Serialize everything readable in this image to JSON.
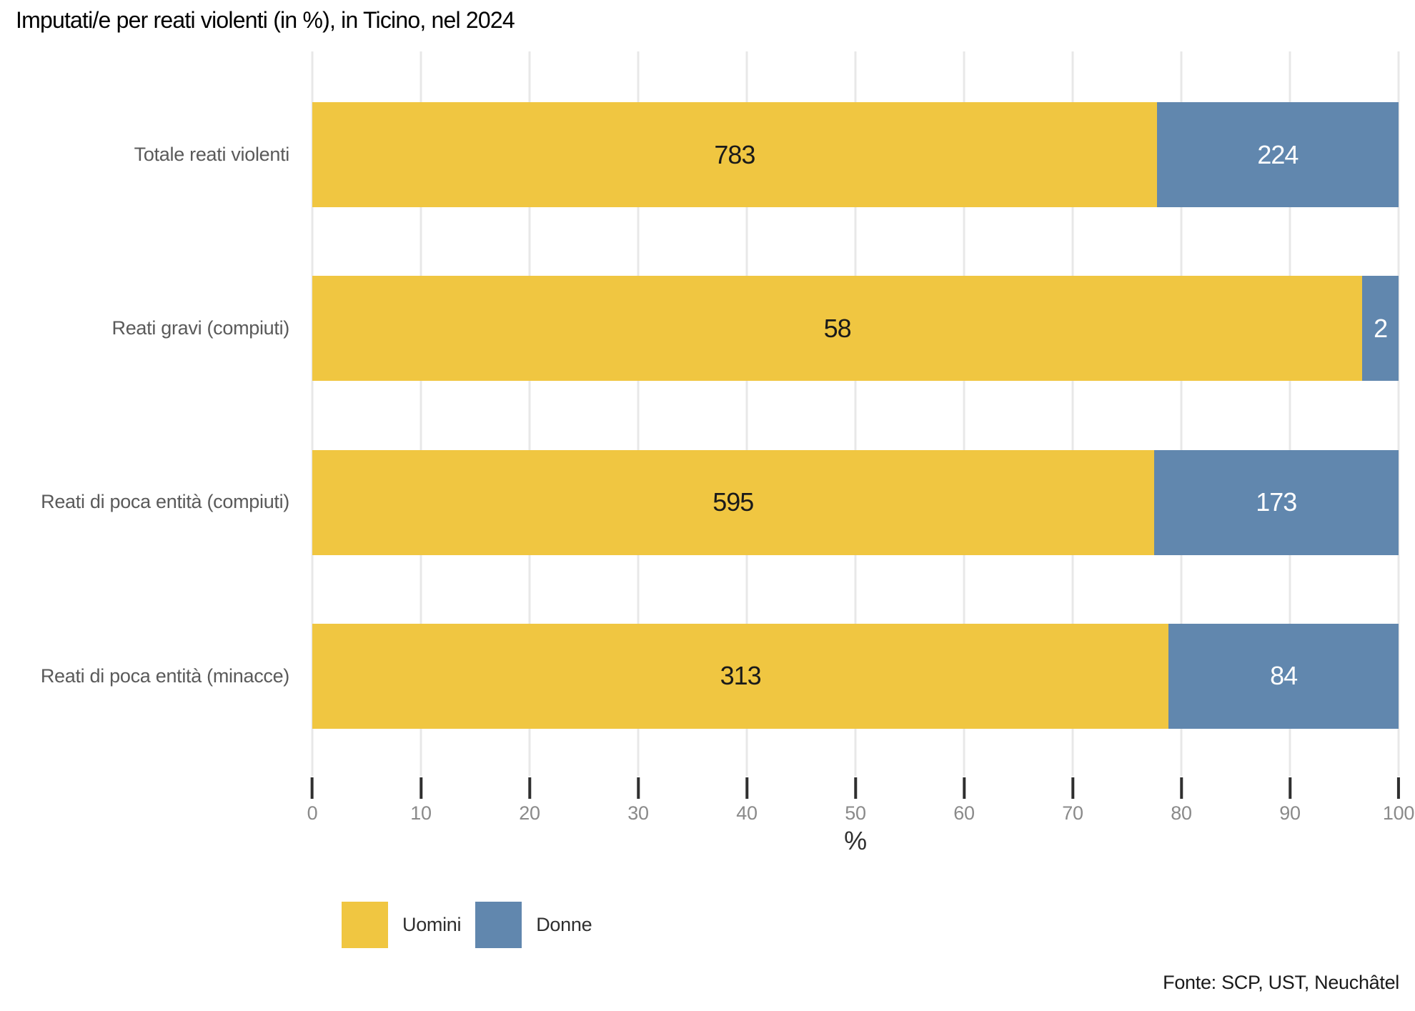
{
  "title": "Imputati/e per reati violenti (in %), in Ticino, nel 2024",
  "source_note": "Fonte: SCP, UST, Neuchâtel",
  "x_axis": {
    "label": "%",
    "min": 0,
    "max": 100,
    "ticks": [
      0,
      10,
      20,
      30,
      40,
      50,
      60,
      70,
      80,
      90,
      100
    ]
  },
  "colors": {
    "uomini": "#F0C641",
    "donne": "#6187AE",
    "gridline": "#E8E8E8",
    "tick_mark": "#2F2F2F",
    "tick_label": "#8A8A8A",
    "category_label": "#5A5A5A",
    "value_label_dark": "#1A1A1A",
    "value_label_light": "#FFFFFF"
  },
  "chart_data": {
    "type": "bar",
    "orientation": "horizontal",
    "stacked": true,
    "normalized_to_percent": true,
    "value_encoding": "segment width = share of row total (in %); data labels show absolute counts",
    "title": "Imputati/e per reati violenti (in %), in Ticino, nel 2024",
    "categories": [
      "Totale reati violenti",
      "Reati gravi (compiuti)",
      "Reati di poca entità (compiuti)",
      "Reati di poca entità (minacce)"
    ],
    "series": [
      {
        "name": "Uomini",
        "color": "#F0C641",
        "values": [
          783,
          58,
          595,
          313
        ]
      },
      {
        "name": "Donne",
        "color": "#6187AE",
        "values": [
          224,
          2,
          173,
          84
        ]
      }
    ],
    "xlabel": "%",
    "xlim": [
      0,
      100
    ],
    "grid": true,
    "legend_position": "bottom",
    "source": "Fonte: SCP, UST, Neuchâtel"
  }
}
